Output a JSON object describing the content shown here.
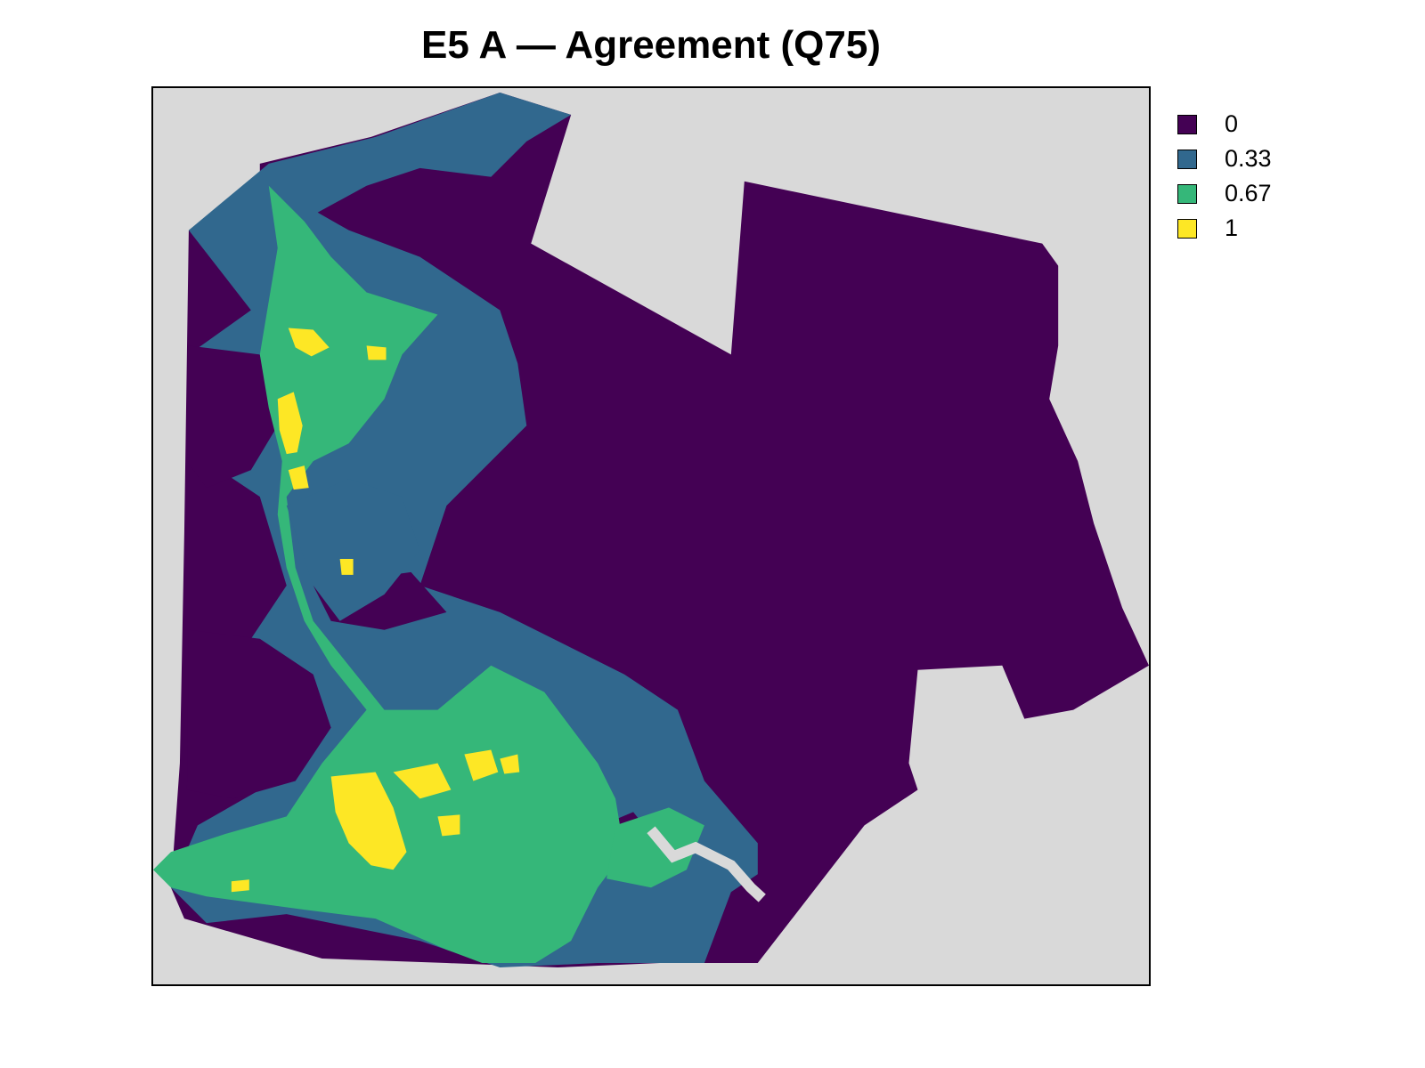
{
  "title": "E5 A — Agreement (Q75)",
  "map": {
    "background_color": "#d9d9d9",
    "classes": [
      {
        "label": "0",
        "color": "#440154"
      },
      {
        "label": "0.33",
        "color": "#31688e"
      },
      {
        "label": "0.67",
        "color": "#35b779"
      },
      {
        "label": "1",
        "color": "#fde725"
      }
    ]
  },
  "legend": {
    "items": [
      {
        "label": "0",
        "color": "#440154"
      },
      {
        "label": "0.33",
        "color": "#31688e"
      },
      {
        "label": "0.67",
        "color": "#35b779"
      },
      {
        "label": "1",
        "color": "#fde725"
      }
    ]
  }
}
